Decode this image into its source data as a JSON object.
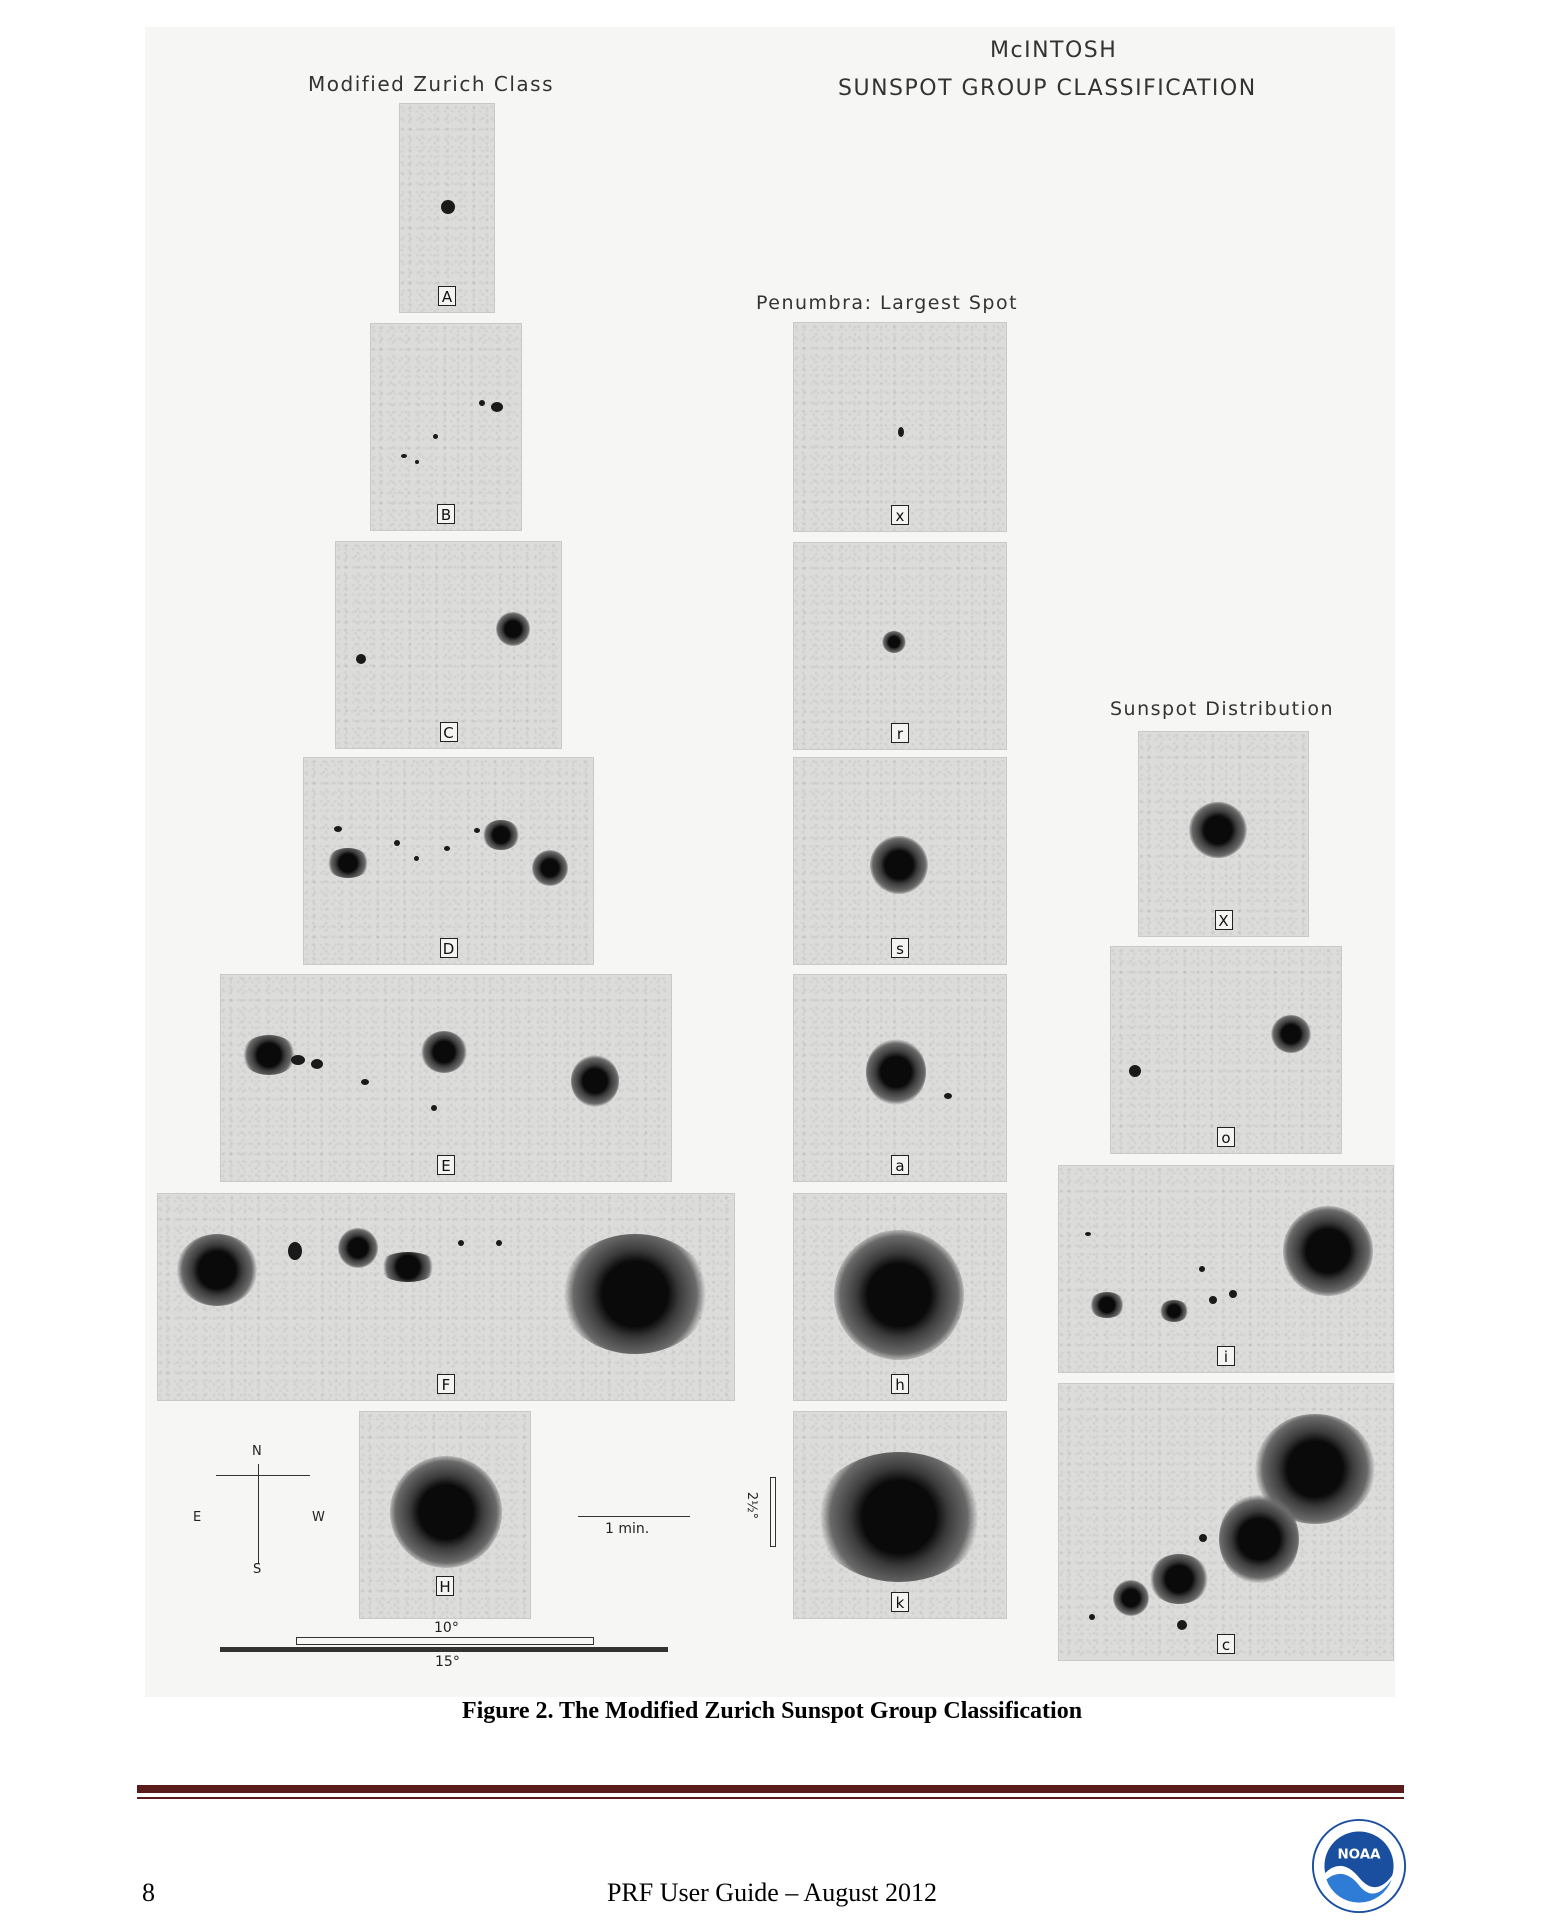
{
  "figure": {
    "heading_left": "Modified Zurich Class",
    "heading_right_line1": "McINTOSH",
    "heading_right_line2": "SUNSPOT GROUP CLASSIFICATION",
    "heading_penumbra": "Penumbra: Largest Spot",
    "heading_distribution": "Sunspot Distribution",
    "zurich_labels": [
      "A",
      "B",
      "C",
      "D",
      "E",
      "F",
      "H"
    ],
    "penumbra_labels": [
      "x",
      "r",
      "s",
      "a",
      "h",
      "k"
    ],
    "distribution_labels": [
      "X",
      "o",
      "i",
      "c"
    ],
    "compass": {
      "north": "N",
      "south": "S",
      "east": "E",
      "west": "W"
    },
    "time_scale": "1 min.",
    "scale_vertical": "2½°",
    "scale_10": "10°",
    "scale_15": "15°"
  },
  "caption": "Figure 2. The Modified Zurich Sunspot Group Classification",
  "footer": {
    "page_number": "8",
    "text": "PRF User Guide – August 2012"
  },
  "logo": {
    "text": "NOAA",
    "icon": "noaa-logo-icon"
  },
  "colors": {
    "rule": "#5b1c1c",
    "logo_blue": "#1a4fa0"
  }
}
